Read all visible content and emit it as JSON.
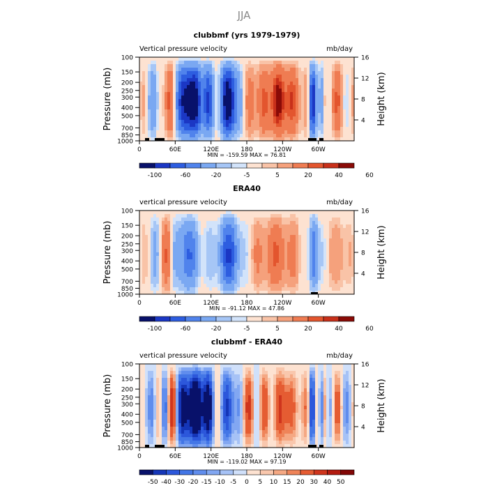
{
  "figure_title": "JJA",
  "chart_data": [
    {
      "type": "heatmap",
      "title": "clubbmf (yrs 1979-1979)",
      "left_label": "Vertical pressure velocity",
      "units": "mb/day",
      "ylabel": "Pressure (mb)",
      "ylabel_right": "Height (km)",
      "x_ticks": [
        "0",
        "60E",
        "120E",
        "180",
        "120W",
        "60W"
      ],
      "y_ticks": [
        "100",
        "150",
        "200",
        "250",
        "300",
        "400",
        "500",
        "700",
        "850",
        "1000"
      ],
      "y_right_ticks": [
        "16",
        "12",
        "8",
        "4"
      ],
      "stats": "MIN = -159.59   MAX =  76.81",
      "colorbar": [
        "-100",
        "-60",
        "-20",
        "-5",
        "5",
        "20",
        "40",
        "60"
      ]
    },
    {
      "type": "heatmap",
      "title": "ERA40",
      "left_label": "vertical pressure velocity",
      "units": "mb/day",
      "ylabel": "Pressure (mb)",
      "ylabel_right": "Height (km)",
      "x_ticks": [
        "0",
        "60E",
        "120E",
        "180",
        "120W",
        "60W"
      ],
      "y_ticks": [
        "100",
        "150",
        "200",
        "250",
        "300",
        "400",
        "500",
        "700",
        "850",
        "1000"
      ],
      "y_right_ticks": [
        "16",
        "12",
        "8",
        "4"
      ],
      "stats": "MIN = -91.12   MAX =  47.86",
      "colorbar": [
        "-100",
        "-60",
        "-20",
        "-5",
        "5",
        "20",
        "40",
        "60"
      ]
    },
    {
      "type": "heatmap",
      "title": "clubbmf - ERA40",
      "left_label": "vertical pressure velocity",
      "units": "mb/day",
      "ylabel": "Pressure (mb)",
      "ylabel_right": "Height (km)",
      "x_ticks": [
        "0",
        "60E",
        "120E",
        "180",
        "120W",
        "60W"
      ],
      "y_ticks": [
        "100",
        "150",
        "200",
        "250",
        "300",
        "400",
        "500",
        "700",
        "850",
        "1000"
      ],
      "y_right_ticks": [
        "16",
        "12",
        "8",
        "4"
      ],
      "stats": "MIN = -119.02   MAX =  97.19",
      "colorbar": [
        "-50",
        "-40",
        "-30",
        "-20",
        "-15",
        "-10",
        "-5",
        "0",
        "5",
        "10",
        "15",
        "20",
        "30",
        "40",
        "50"
      ]
    }
  ]
}
